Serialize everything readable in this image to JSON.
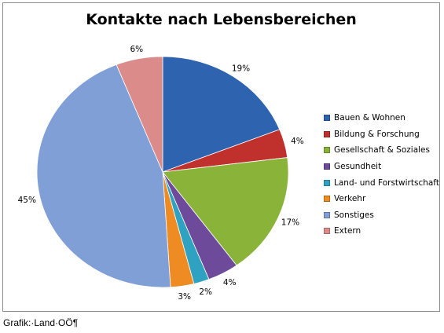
{
  "chart_data": {
    "type": "pie",
    "title": "Kontakte nach Lebensbereichen",
    "categories": [
      "Bauen & Wohnen",
      "Bildung & Forschung",
      "Gesellschaft & Soziales",
      "Gesundheit",
      "Land- und Forstwirtschaft",
      "Verkehr",
      "Sonstiges",
      "Extern"
    ],
    "values": [
      19,
      4,
      17,
      4,
      2,
      3,
      45,
      6
    ],
    "data_labels": [
      "19%",
      "4%",
      "17%",
      "4%",
      "2%",
      "3%",
      "45%",
      "6%"
    ],
    "colors": [
      "#2e63b0",
      "#c0302d",
      "#8ab33a",
      "#6d4a9a",
      "#2ea2c0",
      "#ee8b22",
      "#7f9fd6",
      "#dc8b8b"
    ],
    "legend_position": "right"
  },
  "footer": {
    "credit": "Grafik:·Land·OÖ¶"
  }
}
